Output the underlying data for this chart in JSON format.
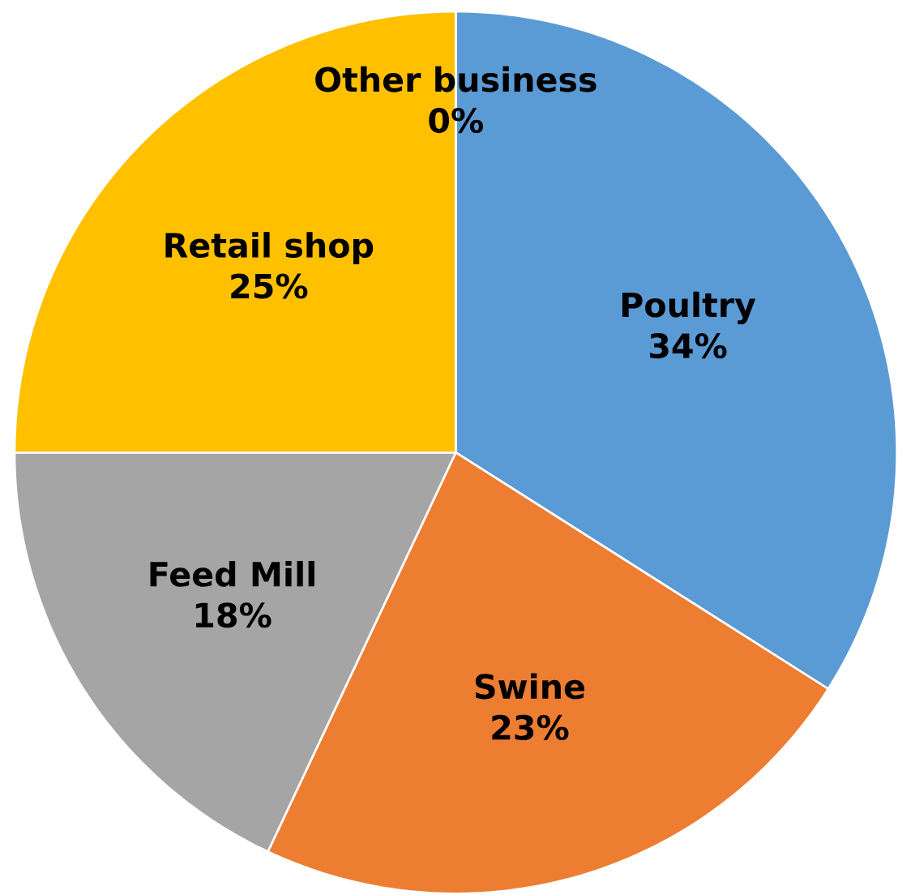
{
  "chart_data": {
    "type": "pie",
    "categories": [
      "Poultry",
      "Swine",
      "Feed Mill",
      "Retail shop",
      "Other business"
    ],
    "values": [
      34,
      23,
      18,
      25,
      0
    ],
    "value_labels": [
      "34%",
      "23%",
      "18%",
      "25%",
      "0%"
    ],
    "colors": [
      "#5b9bd5",
      "#ed7d31",
      "#a5a5a5",
      "#ffc000",
      "#4472c4"
    ]
  }
}
